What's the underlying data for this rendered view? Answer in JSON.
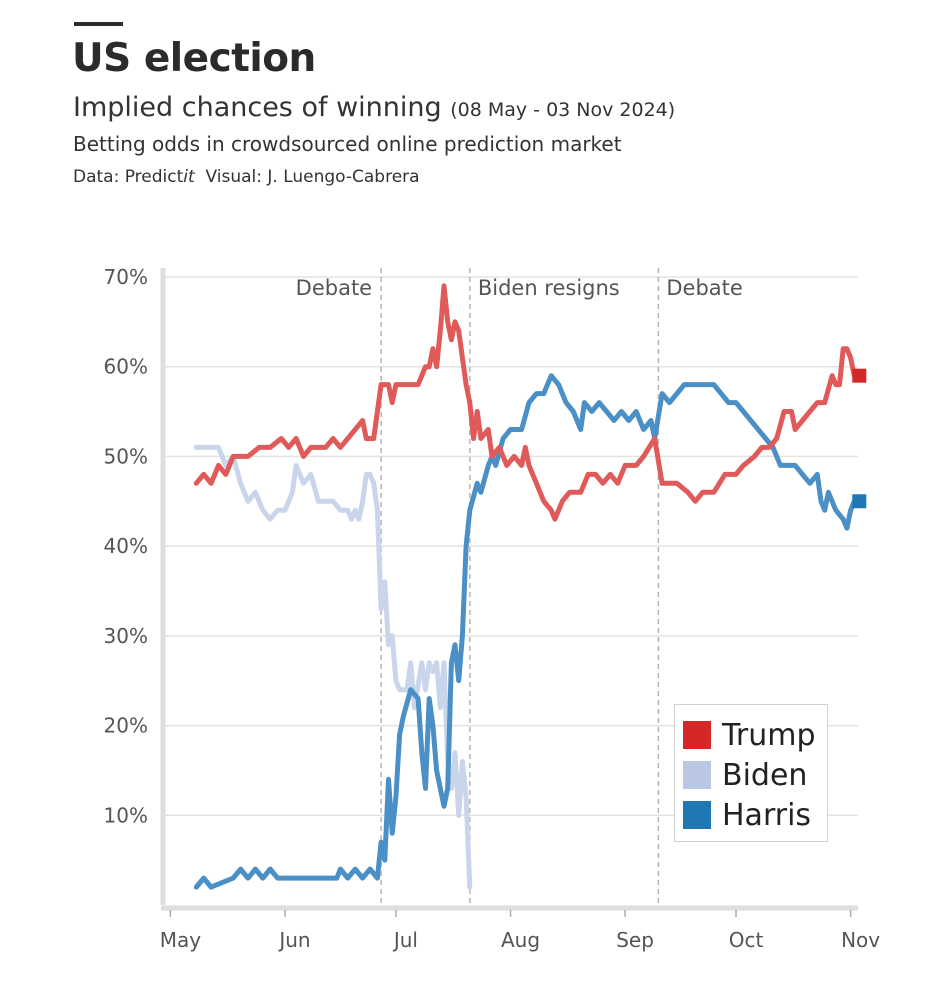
{
  "header": {
    "title": "US election",
    "subtitle": "Implied chances of winning",
    "subtitle_range": "(08 May - 03 Nov 2024)",
    "description": "Betting odds in crowdsourced online prediction market",
    "source_prefix": "Data: Predict",
    "source_italic": "it",
    "source_suffix": "Visual: J. Luengo-Cabrera"
  },
  "chart_data": {
    "type": "line",
    "title": "US election",
    "xlabel": "",
    "ylabel": "",
    "x_range": [
      "2024-04-29",
      "2024-11-03"
    ],
    "ylim": [
      0,
      71
    ],
    "y_ticks": [
      10,
      20,
      30,
      40,
      50,
      60,
      70
    ],
    "y_tick_labels": [
      "10%",
      "20%",
      "30%",
      "40%",
      "50%",
      "60%",
      "70%"
    ],
    "x_ticks": [
      "2024-05-01",
      "2024-06-01",
      "2024-07-01",
      "2024-08-01",
      "2024-09-01",
      "2024-10-01",
      "2024-11-01"
    ],
    "x_tick_labels": [
      "May",
      "Jun",
      "Jul",
      "Aug",
      "Sep",
      "Oct",
      "Nov"
    ],
    "grid": "horizontal",
    "legend_position": "bottom-right",
    "events": [
      {
        "date": "2024-06-27",
        "label": "Debate"
      },
      {
        "date": "2024-07-21",
        "label": "Biden resigns"
      },
      {
        "date": "2024-09-10",
        "label": "Debate"
      }
    ],
    "series": [
      {
        "name": "Trump",
        "color": "#d62728",
        "end_marker": true,
        "points": [
          [
            "2024-05-08",
            47
          ],
          [
            "2024-05-10",
            48
          ],
          [
            "2024-05-12",
            47
          ],
          [
            "2024-05-14",
            49
          ],
          [
            "2024-05-16",
            48
          ],
          [
            "2024-05-18",
            50
          ],
          [
            "2024-05-22",
            50
          ],
          [
            "2024-05-25",
            51
          ],
          [
            "2024-05-28",
            51
          ],
          [
            "2024-05-31",
            52
          ],
          [
            "2024-06-02",
            51
          ],
          [
            "2024-06-04",
            52
          ],
          [
            "2024-06-06",
            50
          ],
          [
            "2024-06-08",
            51
          ],
          [
            "2024-06-12",
            51
          ],
          [
            "2024-06-14",
            52
          ],
          [
            "2024-06-16",
            51
          ],
          [
            "2024-06-18",
            52
          ],
          [
            "2024-06-20",
            53
          ],
          [
            "2024-06-22",
            54
          ],
          [
            "2024-06-23",
            52
          ],
          [
            "2024-06-25",
            52
          ],
          [
            "2024-06-26",
            55
          ],
          [
            "2024-06-27",
            58
          ],
          [
            "2024-06-29",
            58
          ],
          [
            "2024-06-30",
            56
          ],
          [
            "2024-07-01",
            58
          ],
          [
            "2024-07-05",
            58
          ],
          [
            "2024-07-07",
            58
          ],
          [
            "2024-07-08",
            59
          ],
          [
            "2024-07-09",
            60
          ],
          [
            "2024-07-10",
            60
          ],
          [
            "2024-07-11",
            62
          ],
          [
            "2024-07-12",
            60
          ],
          [
            "2024-07-13",
            64
          ],
          [
            "2024-07-14",
            69
          ],
          [
            "2024-07-15",
            65
          ],
          [
            "2024-07-16",
            63
          ],
          [
            "2024-07-17",
            65
          ],
          [
            "2024-07-18",
            64
          ],
          [
            "2024-07-19",
            61
          ],
          [
            "2024-07-20",
            58
          ],
          [
            "2024-07-21",
            56
          ],
          [
            "2024-07-22",
            52
          ],
          [
            "2024-07-23",
            55
          ],
          [
            "2024-07-24",
            52
          ],
          [
            "2024-07-26",
            53
          ],
          [
            "2024-07-27",
            50
          ],
          [
            "2024-07-29",
            51
          ],
          [
            "2024-07-31",
            49
          ],
          [
            "2024-08-02",
            50
          ],
          [
            "2024-08-04",
            49
          ],
          [
            "2024-08-05",
            51
          ],
          [
            "2024-08-06",
            49
          ],
          [
            "2024-08-08",
            47
          ],
          [
            "2024-08-10",
            45
          ],
          [
            "2024-08-12",
            44
          ],
          [
            "2024-08-13",
            43
          ],
          [
            "2024-08-15",
            45
          ],
          [
            "2024-08-17",
            46
          ],
          [
            "2024-08-20",
            46
          ],
          [
            "2024-08-22",
            48
          ],
          [
            "2024-08-24",
            48
          ],
          [
            "2024-08-26",
            47
          ],
          [
            "2024-08-28",
            48
          ],
          [
            "2024-08-30",
            47
          ],
          [
            "2024-09-01",
            49
          ],
          [
            "2024-09-04",
            49
          ],
          [
            "2024-09-06",
            50
          ],
          [
            "2024-09-09",
            52
          ],
          [
            "2024-09-11",
            47
          ],
          [
            "2024-09-15",
            47
          ],
          [
            "2024-09-18",
            46
          ],
          [
            "2024-09-20",
            45
          ],
          [
            "2024-09-22",
            46
          ],
          [
            "2024-09-25",
            46
          ],
          [
            "2024-09-28",
            48
          ],
          [
            "2024-10-01",
            48
          ],
          [
            "2024-10-03",
            49
          ],
          [
            "2024-10-06",
            50
          ],
          [
            "2024-10-08",
            51
          ],
          [
            "2024-10-10",
            51
          ],
          [
            "2024-10-12",
            52
          ],
          [
            "2024-10-14",
            55
          ],
          [
            "2024-10-16",
            55
          ],
          [
            "2024-10-17",
            53
          ],
          [
            "2024-10-19",
            54
          ],
          [
            "2024-10-21",
            55
          ],
          [
            "2024-10-23",
            56
          ],
          [
            "2024-10-25",
            56
          ],
          [
            "2024-10-27",
            59
          ],
          [
            "2024-10-28",
            58
          ],
          [
            "2024-10-29",
            58
          ],
          [
            "2024-10-30",
            62
          ],
          [
            "2024-10-31",
            62
          ],
          [
            "2024-11-01",
            61
          ],
          [
            "2024-11-02",
            59
          ]
        ]
      },
      {
        "name": "Biden",
        "color": "#b9c7e4",
        "end_marker": false,
        "points": [
          [
            "2024-05-08",
            51
          ],
          [
            "2024-05-14",
            51
          ],
          [
            "2024-05-16",
            49
          ],
          [
            "2024-05-18",
            50
          ],
          [
            "2024-05-20",
            47
          ],
          [
            "2024-05-22",
            45
          ],
          [
            "2024-05-24",
            46
          ],
          [
            "2024-05-26",
            44
          ],
          [
            "2024-05-28",
            43
          ],
          [
            "2024-05-30",
            44
          ],
          [
            "2024-06-01",
            44
          ],
          [
            "2024-06-03",
            46
          ],
          [
            "2024-06-04",
            49
          ],
          [
            "2024-06-06",
            47
          ],
          [
            "2024-06-08",
            48
          ],
          [
            "2024-06-10",
            45
          ],
          [
            "2024-06-14",
            45
          ],
          [
            "2024-06-16",
            44
          ],
          [
            "2024-06-18",
            44
          ],
          [
            "2024-06-19",
            43
          ],
          [
            "2024-06-20",
            44
          ],
          [
            "2024-06-21",
            43
          ],
          [
            "2024-06-22",
            45
          ],
          [
            "2024-06-23",
            48
          ],
          [
            "2024-06-24",
            48
          ],
          [
            "2024-06-25",
            47
          ],
          [
            "2024-06-26",
            44
          ],
          [
            "2024-06-27",
            33
          ],
          [
            "2024-06-28",
            36
          ],
          [
            "2024-06-29",
            29
          ],
          [
            "2024-06-30",
            30
          ],
          [
            "2024-07-01",
            25
          ],
          [
            "2024-07-02",
            24
          ],
          [
            "2024-07-04",
            24
          ],
          [
            "2024-07-05",
            27
          ],
          [
            "2024-07-06",
            22
          ],
          [
            "2024-07-08",
            27
          ],
          [
            "2024-07-09",
            24
          ],
          [
            "2024-07-10",
            27
          ],
          [
            "2024-07-11",
            26
          ],
          [
            "2024-07-12",
            27
          ],
          [
            "2024-07-13",
            22
          ],
          [
            "2024-07-14",
            27
          ],
          [
            "2024-07-15",
            16
          ],
          [
            "2024-07-16",
            13
          ],
          [
            "2024-07-17",
            17
          ],
          [
            "2024-07-18",
            10
          ],
          [
            "2024-07-19",
            16
          ],
          [
            "2024-07-20",
            12
          ],
          [
            "2024-07-21",
            2
          ]
        ]
      },
      {
        "name": "Harris",
        "color": "#1f77b4",
        "end_marker": true,
        "points": [
          [
            "2024-05-08",
            2
          ],
          [
            "2024-05-10",
            3
          ],
          [
            "2024-05-12",
            2
          ],
          [
            "2024-05-18",
            3
          ],
          [
            "2024-05-20",
            4
          ],
          [
            "2024-05-22",
            3
          ],
          [
            "2024-05-24",
            4
          ],
          [
            "2024-05-26",
            3
          ],
          [
            "2024-05-28",
            4
          ],
          [
            "2024-05-30",
            3
          ],
          [
            "2024-06-01",
            3
          ],
          [
            "2024-06-15",
            3
          ],
          [
            "2024-06-16",
            4
          ],
          [
            "2024-06-18",
            3
          ],
          [
            "2024-06-20",
            4
          ],
          [
            "2024-06-22",
            3
          ],
          [
            "2024-06-24",
            4
          ],
          [
            "2024-06-26",
            3
          ],
          [
            "2024-06-27",
            7
          ],
          [
            "2024-06-28",
            5
          ],
          [
            "2024-06-29",
            14
          ],
          [
            "2024-06-30",
            8
          ],
          [
            "2024-07-01",
            12
          ],
          [
            "2024-07-02",
            19
          ],
          [
            "2024-07-03",
            21
          ],
          [
            "2024-07-05",
            24
          ],
          [
            "2024-07-07",
            23
          ],
          [
            "2024-07-08",
            17
          ],
          [
            "2024-07-09",
            13
          ],
          [
            "2024-07-10",
            23
          ],
          [
            "2024-07-11",
            20
          ],
          [
            "2024-07-12",
            15
          ],
          [
            "2024-07-13",
            13
          ],
          [
            "2024-07-14",
            11
          ],
          [
            "2024-07-15",
            13
          ],
          [
            "2024-07-16",
            27
          ],
          [
            "2024-07-17",
            29
          ],
          [
            "2024-07-18",
            25
          ],
          [
            "2024-07-19",
            30
          ],
          [
            "2024-07-20",
            40
          ],
          [
            "2024-07-21",
            44
          ],
          [
            "2024-07-23",
            47
          ],
          [
            "2024-07-24",
            46
          ],
          [
            "2024-07-26",
            49
          ],
          [
            "2024-07-27",
            50
          ],
          [
            "2024-07-28",
            49
          ],
          [
            "2024-07-30",
            52
          ],
          [
            "2024-08-01",
            53
          ],
          [
            "2024-08-04",
            53
          ],
          [
            "2024-08-06",
            56
          ],
          [
            "2024-08-08",
            57
          ],
          [
            "2024-08-10",
            57
          ],
          [
            "2024-08-12",
            59
          ],
          [
            "2024-08-14",
            58
          ],
          [
            "2024-08-16",
            56
          ],
          [
            "2024-08-18",
            55
          ],
          [
            "2024-08-20",
            53
          ],
          [
            "2024-08-21",
            56
          ],
          [
            "2024-08-23",
            55
          ],
          [
            "2024-08-25",
            56
          ],
          [
            "2024-08-27",
            55
          ],
          [
            "2024-08-29",
            54
          ],
          [
            "2024-08-31",
            55
          ],
          [
            "2024-09-02",
            54
          ],
          [
            "2024-09-04",
            55
          ],
          [
            "2024-09-06",
            53
          ],
          [
            "2024-09-08",
            54
          ],
          [
            "2024-09-09",
            52
          ],
          [
            "2024-09-11",
            57
          ],
          [
            "2024-09-13",
            56
          ],
          [
            "2024-09-15",
            57
          ],
          [
            "2024-09-17",
            58
          ],
          [
            "2024-09-25",
            58
          ],
          [
            "2024-09-27",
            57
          ],
          [
            "2024-09-29",
            56
          ],
          [
            "2024-10-01",
            56
          ],
          [
            "2024-10-03",
            55
          ],
          [
            "2024-10-05",
            54
          ],
          [
            "2024-10-07",
            53
          ],
          [
            "2024-10-09",
            52
          ],
          [
            "2024-10-11",
            51
          ],
          [
            "2024-10-13",
            49
          ],
          [
            "2024-10-15",
            49
          ],
          [
            "2024-10-17",
            49
          ],
          [
            "2024-10-19",
            48
          ],
          [
            "2024-10-21",
            47
          ],
          [
            "2024-10-23",
            48
          ],
          [
            "2024-10-24",
            45
          ],
          [
            "2024-10-25",
            44
          ],
          [
            "2024-10-26",
            46
          ],
          [
            "2024-10-28",
            44
          ],
          [
            "2024-10-30",
            43
          ],
          [
            "2024-10-31",
            42
          ],
          [
            "2024-11-01",
            44
          ],
          [
            "2024-11-02",
            45
          ]
        ]
      }
    ]
  }
}
